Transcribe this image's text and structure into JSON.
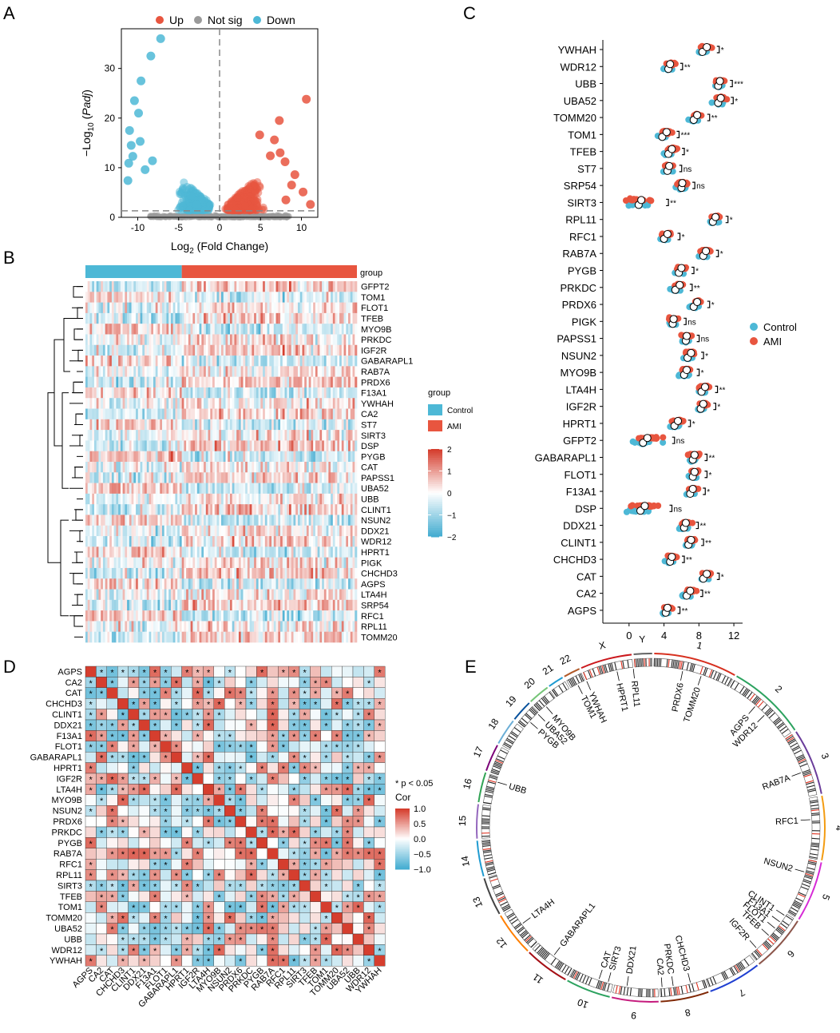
{
  "figure": {
    "panel_labels": [
      "A",
      "B",
      "C",
      "D",
      "E"
    ]
  },
  "colors": {
    "up": "#E8553F",
    "down": "#4DB8D6",
    "notsig": "#9A9A9A",
    "control": "#4DB8D6",
    "ami": "#E8553F"
  },
  "chart_data": [
    {
      "panel": "A",
      "type": "scatter",
      "title": "",
      "xlabel_main": "Log",
      "xlabel_sub": "2",
      "xlabel_rest": " (Fold Change)",
      "ylabel_main": "−Log",
      "ylabel_sub": "10",
      "ylabel_paren_open": " (",
      "ylabel_italic": "Padj",
      "ylabel_paren_close": ")",
      "legend": [
        "Up",
        "Not sig",
        "Down"
      ],
      "xlim": [
        -12,
        12
      ],
      "ylim": [
        0,
        38
      ],
      "xticks": [
        "-10",
        "-5",
        "0",
        "5",
        "10"
      ],
      "xtick_values": [
        -10,
        -5,
        0,
        5,
        10
      ],
      "yticks": [
        "0",
        "10",
        "20",
        "30"
      ],
      "ytick_values": [
        0,
        10,
        20,
        30
      ],
      "threshold_y": 1.3,
      "threshold_x": 0,
      "highlight_points": {
        "down": [
          [
            -7.2,
            36
          ],
          [
            -8.4,
            32.5
          ],
          [
            -9.6,
            27.5
          ],
          [
            -10.4,
            23.5
          ],
          [
            -9.9,
            21
          ],
          [
            -11,
            17.5
          ],
          [
            -10.8,
            14.5
          ],
          [
            -9.7,
            15.3
          ],
          [
            -10.6,
            12.3
          ],
          [
            -11.1,
            10.9
          ],
          [
            -11.2,
            7.4
          ],
          [
            -8.2,
            11.4
          ],
          [
            -9.1,
            9.6
          ]
        ],
        "up": [
          [
            10.6,
            23.8
          ],
          [
            7.3,
            19.5
          ],
          [
            4.9,
            16.6
          ],
          [
            6.7,
            15.6
          ],
          [
            7.4,
            13
          ],
          [
            6.2,
            12.4
          ],
          [
            8,
            11.2
          ],
          [
            9.2,
            8.6
          ],
          [
            10.2,
            5.1
          ],
          [
            11.1,
            2.6
          ],
          [
            8.1,
            3.5
          ],
          [
            8.8,
            6.5
          ]
        ]
      }
    },
    {
      "panel": "B",
      "type": "heatmap",
      "annotation_label": "group",
      "legend_title": "group",
      "legend_groups": [
        "Control",
        "AMI"
      ],
      "color_scale_ticks": [
        "2",
        "1",
        "0",
        "−1",
        "−2"
      ],
      "color_scale_values": [
        2,
        1,
        0,
        -1,
        -2
      ],
      "n_control": 44,
      "n_ami": 80,
      "rows": [
        "GFPT2",
        "TOM1",
        "FLOT1",
        "TFEB",
        "MYO9B",
        "PRKDC",
        "IGF2R",
        "GABARAPL1",
        "RAB7A",
        "PRDX6",
        "F13A1",
        "YWHAH",
        "CA2",
        "ST7",
        "SIRT3",
        "DSP",
        "PYGB",
        "CAT",
        "PAPSS1",
        "UBA52",
        "UBB",
        "CLINT1",
        "NSUN2",
        "DDX21",
        "WDR12",
        "HPRT1",
        "PIGK",
        "CHCHD3",
        "AGPS",
        "LTA4H",
        "SRP54",
        "RFC1",
        "RPL11",
        "TOMM20"
      ]
    },
    {
      "panel": "C",
      "type": "scatter",
      "subtype": "dot-strip",
      "xlim": [
        -3,
        13
      ],
      "xticks": [
        "0",
        "4",
        "8",
        "12"
      ],
      "xtick_values": [
        0,
        4,
        8,
        12
      ],
      "legend": [
        "Control",
        "AMI"
      ],
      "genes": [
        "YWHAH",
        "WDR12",
        "UBB",
        "UBA52",
        "TOMM20",
        "TOM1",
        "TFEB",
        "ST7",
        "SRP54",
        "SIRT3",
        "RPL11",
        "RFC1",
        "RAB7A",
        "PYGB",
        "PRKDC",
        "PRDX6",
        "PIGK",
        "PAPSS1",
        "NSUN2",
        "MYO9B",
        "LTA4H",
        "IGF2R",
        "HPRT1",
        "GFPT2",
        "GABARAPL1",
        "FLOT1",
        "F13A1",
        "DSP",
        "DDX21",
        "CLINT1",
        "CHCHD3",
        "CAT",
        "CA2",
        "AGPS"
      ],
      "control_mean": [
        8.4,
        4.5,
        10.2,
        10.2,
        7.4,
        3.8,
        4.5,
        4.4,
        6,
        1.1,
        9.6,
        4,
        8.5,
        5.7,
        5.3,
        7.4,
        5,
        6.5,
        6.7,
        6.3,
        8.3,
        8.2,
        5.2,
        1.6,
        7.3,
        7.3,
        7,
        1.3,
        6.3,
        6.8,
        4.7,
        8.5,
        6.6,
        4.2
      ],
      "ami_mean": [
        8.9,
        4.7,
        10.4,
        10.5,
        7.8,
        4.3,
        4.9,
        4.6,
        6.1,
        1.4,
        9.9,
        4.4,
        8.8,
        6,
        5.8,
        7.8,
        5.1,
        6.6,
        7.1,
        6.6,
        8.7,
        8.5,
        5.6,
        2.1,
        7.5,
        7.5,
        7.3,
        1.8,
        6.5,
        7.1,
        4.9,
        8.9,
        7,
        4.4
      ],
      "significance": [
        "*",
        "**",
        "***",
        "*",
        "**",
        "***",
        "*",
        "ns",
        "ns",
        "**",
        "*",
        "*",
        "*",
        "*",
        "**",
        "*",
        "ns",
        "ns",
        "*",
        "*",
        "**",
        "*",
        "*",
        "ns",
        "**",
        "*",
        "*",
        "ns",
        "**",
        "**",
        "**",
        "*",
        "**",
        "**"
      ]
    },
    {
      "panel": "D",
      "type": "heatmap",
      "subtype": "correlation",
      "legend_title": "Cor",
      "note": "* p < 0.05",
      "color_scale_ticks": [
        "1.0",
        "0.5",
        "0.0",
        "−0.5",
        "−1.0"
      ],
      "color_scale_values": [
        1,
        0.5,
        0,
        -0.5,
        -1
      ],
      "labels": [
        "AGPS",
        "CA2",
        "CAT",
        "CHCHD3",
        "CLINT1",
        "DDX21",
        "F13A1",
        "FLOT1",
        "GABARAPL1",
        "HPRT1",
        "IGF2R",
        "LTA4H",
        "MYO9B",
        "NSUN2",
        "PRDX6",
        "PRKDC",
        "PYGB",
        "RAB7A",
        "RFC1",
        "RPL11",
        "SIRT3",
        "TFEB",
        "TOM1",
        "TOMM20",
        "UBA52",
        "UBB",
        "WDR12",
        "YWHAH"
      ]
    },
    {
      "panel": "E",
      "type": "other",
      "subtype": "circos",
      "chromosomes": [
        "1",
        "2",
        "3",
        "4",
        "5",
        "6",
        "7",
        "8",
        "9",
        "10",
        "11",
        "12",
        "13",
        "14",
        "15",
        "16",
        "17",
        "18",
        "19",
        "20",
        "21",
        "22",
        "X",
        "Y"
      ],
      "gene_labels": [
        "RPL11",
        "PRDX6",
        "TOMM20",
        "AGPS",
        "WDR12",
        "RAB7A",
        "RFC1",
        "NSUN2",
        "CLINT1",
        "F13A1",
        "FLOT1",
        "TFEB",
        "IGF2R",
        "CHCHD3",
        "PRKDC",
        "CA2",
        "DDX21",
        "SIRT3",
        "CAT",
        "GABARAPL1",
        "LTA4H",
        "UBB",
        "PYGB",
        "UBA52",
        "MYO9B",
        "TOM1",
        "YWHAH",
        "HPRT1"
      ]
    }
  ]
}
